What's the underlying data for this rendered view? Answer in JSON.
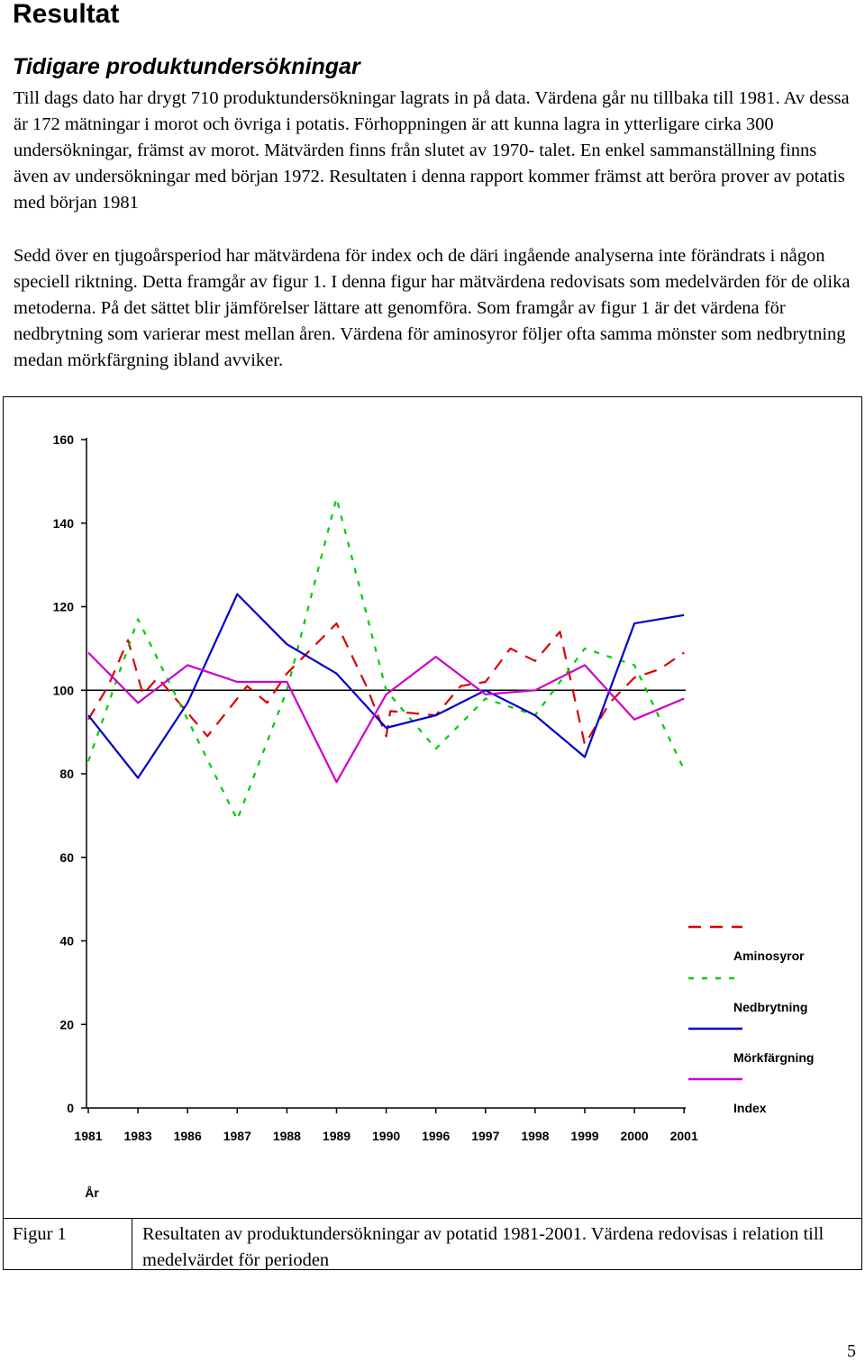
{
  "heading": "Resultat",
  "subheading": "Tidigare produktundersökningar",
  "paragraph_1": "Till dags dato har drygt 710 produktundersökningar lagrats in på data. Värdena går nu tillbaka till 1981. Av dessa är 172 mätningar i morot och övriga i potatis. Förhoppningen är att kunna lagra in ytterligare cirka 300 undersökningar, främst av morot. Mätvärden finns från slutet av 1970- talet. En enkel sammanställning finns även av undersökningar med början 1972. Resultaten i denna rapport kommer främst att beröra prover av potatis med början 1981",
  "paragraph_2": "Sedd över en tjugoårsperiod har mätvärdena för index och de däri ingående analyserna inte förändrats i någon speciell riktning. Detta framgår av figur 1. I denna figur har mätvärdena redovisats som medelvärden för de olika metoderna. På det sättet blir jämförelser lättare att genomföra. Som framgår av figur 1 är det värdena för nedbrytning som varierar mest mellan åren. Värdena för aminosyror följer ofta samma mönster som nedbrytning medan mörkfärgning ibland avviker.",
  "figure": {
    "label": "Figur 1",
    "caption": "Resultaten av produktundersökningar av potatid 1981-2001. Värdena redovisas i relation till medelvärdet för perioden"
  },
  "page_number": "5",
  "chart_data": {
    "type": "line",
    "categories": [
      "1981",
      "1983",
      "1986",
      "1987",
      "1988",
      "1989",
      "1990",
      "1996",
      "1997",
      "1998",
      "1999",
      "2000",
      "2001"
    ],
    "y_ticks": [
      "0",
      "20",
      "40",
      "60",
      "80",
      "100",
      "120",
      "140",
      "160"
    ],
    "ylim": [
      0,
      160
    ],
    "xlabel": "År",
    "ylabel": "",
    "reference_line": 100,
    "grid": false,
    "legend_position": "bottom-right",
    "series": [
      {
        "name": "Aminosyror",
        "color": "#dd0000",
        "dash": "dashed",
        "points": [
          {
            "x": 1981,
            "y": 93
          },
          {
            "x": 1981.8,
            "y": 101
          },
          {
            "x": 1982.6,
            "y": 112
          },
          {
            "x": 1983.3,
            "y": 99
          },
          {
            "x": 1984.2,
            "y": 103
          },
          {
            "x": 1986.4,
            "y": 89
          },
          {
            "x": 1986.8,
            "y": 95
          },
          {
            "x": 1987.2,
            "y": 101
          },
          {
            "x": 1987.6,
            "y": 97
          },
          {
            "x": 1988.0,
            "y": 104
          },
          {
            "x": 1989.0,
            "y": 116
          },
          {
            "x": 1989.6,
            "y": 101
          },
          {
            "x": 1990.0,
            "y": 89
          },
          {
            "x": 1990.5,
            "y": 95
          },
          {
            "x": 1996.0,
            "y": 94
          },
          {
            "x": 1996.5,
            "y": 101
          },
          {
            "x": 1997.0,
            "y": 102
          },
          {
            "x": 1997.5,
            "y": 110
          },
          {
            "x": 1998.0,
            "y": 107
          },
          {
            "x": 1998.5,
            "y": 114
          },
          {
            "x": 1999.0,
            "y": 87
          },
          {
            "x": 1999.5,
            "y": 97
          },
          {
            "x": 2000.0,
            "y": 103
          },
          {
            "x": 2000.5,
            "y": 105
          },
          {
            "x": 2001.0,
            "y": 109
          }
        ]
      },
      {
        "name": "Nedbrytning",
        "color": "#00cc00",
        "dash": "dotted",
        "points": [
          {
            "x": 1981,
            "y": 83
          },
          {
            "x": 1983,
            "y": 117
          },
          {
            "x": 1986,
            "y": 93
          },
          {
            "x": 1987,
            "y": 69
          },
          {
            "x": 1988,
            "y": 100
          },
          {
            "x": 1989,
            "y": 146
          },
          {
            "x": 1990,
            "y": 100
          },
          {
            "x": 1996,
            "y": 86
          },
          {
            "x": 1997,
            "y": 98
          },
          {
            "x": 1998,
            "y": 94
          },
          {
            "x": 1999,
            "y": 110
          },
          {
            "x": 2000,
            "y": 106
          },
          {
            "x": 2001,
            "y": 81
          }
        ]
      },
      {
        "name": "Mörkfärgning",
        "color": "#0000cc",
        "dash": "solid",
        "points": [
          {
            "x": 1981,
            "y": 94
          },
          {
            "x": 1983,
            "y": 79
          },
          {
            "x": 1986,
            "y": 97
          },
          {
            "x": 1987,
            "y": 123
          },
          {
            "x": 1988,
            "y": 111
          },
          {
            "x": 1989,
            "y": 104
          },
          {
            "x": 1990,
            "y": 91
          },
          {
            "x": 1996,
            "y": 94
          },
          {
            "x": 1997,
            "y": 100
          },
          {
            "x": 1998,
            "y": 94
          },
          {
            "x": 1999,
            "y": 84
          },
          {
            "x": 2000,
            "y": 116
          },
          {
            "x": 2001,
            "y": 118
          }
        ]
      },
      {
        "name": "Index",
        "color": "#cc00cc",
        "dash": "solid",
        "points": [
          {
            "x": 1981,
            "y": 109
          },
          {
            "x": 1983,
            "y": 97
          },
          {
            "x": 1986,
            "y": 106
          },
          {
            "x": 1987,
            "y": 102
          },
          {
            "x": 1988,
            "y": 102
          },
          {
            "x": 1989,
            "y": 78
          },
          {
            "x": 1990,
            "y": 99
          },
          {
            "x": 1996,
            "y": 108
          },
          {
            "x": 1997,
            "y": 99
          },
          {
            "x": 1998,
            "y": 100
          },
          {
            "x": 1999,
            "y": 106
          },
          {
            "x": 2000,
            "y": 93
          },
          {
            "x": 2001,
            "y": 98
          }
        ]
      }
    ]
  }
}
